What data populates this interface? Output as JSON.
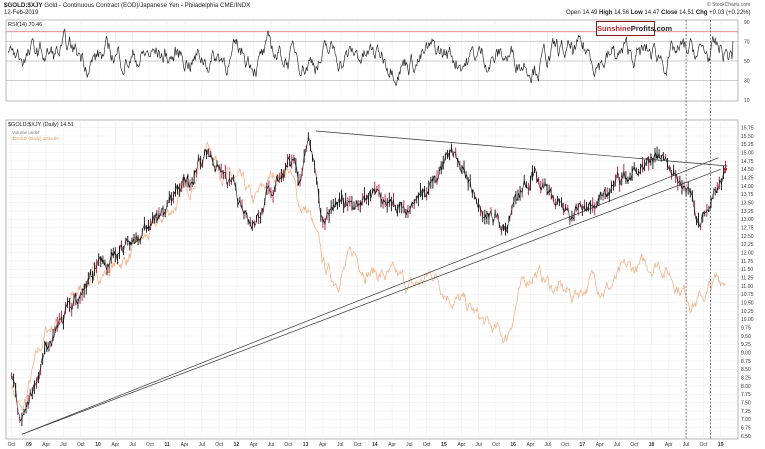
{
  "header": {
    "symbol": "$GOLD:$XJY",
    "description": "Gold - Continuous Contract (EOD)/Japanese Yen - Philadelphia",
    "exchange": "CME/INDX",
    "date": "12-Feb-2019",
    "open_label": "Open",
    "open": "14.49",
    "high_label": "High",
    "high": "14.56",
    "low_label": "Low",
    "low": "14.47",
    "close_label": "Close",
    "close": "14.51",
    "chg_label": "Chg",
    "chg": "+0.03 (+0.22%)",
    "copyright": "© StockCharts.com"
  },
  "logo": {
    "brand": "Sunshine",
    "suffix": "Profits.com"
  },
  "rsi_panel": {
    "legend": "RSI(14) 70.46",
    "levels": [
      "90",
      "70",
      "50",
      "30",
      "10"
    ]
  },
  "price_panel": {
    "legend_main": "$GOLD:$XJY (Daily) 14.51",
    "legend_style": "Volume undef",
    "legend_overlay": "$GOLD (Daily) 1311.50"
  },
  "colors": {
    "rsi_line": "#111111",
    "bars": "#111111",
    "bars_alt": "#b0193a",
    "overlay": "#f4b48c",
    "upper_rsi_band": "#d96a6a",
    "trendline": "#333333"
  },
  "chart_data": {
    "type": "line",
    "title": "$GOLD:$XJY",
    "x_ticks": [
      "Oct",
      "09",
      "Apr",
      "Jul",
      "Oct",
      "10",
      "Apr",
      "Jul",
      "Oct",
      "11",
      "Apr",
      "Jul",
      "Oct",
      "12",
      "Apr",
      "Jul",
      "Oct",
      "13",
      "Apr",
      "Jul",
      "Oct",
      "14",
      "Apr",
      "Jul",
      "Oct",
      "15",
      "Apr",
      "Jul",
      "Oct",
      "16",
      "Apr",
      "Jul",
      "Oct",
      "17",
      "Apr",
      "Jul",
      "Oct",
      "18",
      "Apr",
      "Jul",
      "Oct",
      "19"
    ],
    "y_ticks": [
      "15.75",
      "15.50",
      "15.25",
      "15.00",
      "14.75",
      "14.50",
      "14.25",
      "14.00",
      "13.75",
      "13.50",
      "13.25",
      "13.00",
      "12.75",
      "12.50",
      "12.25",
      "12.00",
      "11.75",
      "11.50",
      "11.25",
      "11.00",
      "10.75",
      "10.50",
      "10.25",
      "10.00",
      "9.75",
      "9.50",
      "9.25",
      "9.00",
      "8.75",
      "8.50",
      "8.25",
      "8.00",
      "7.75",
      "7.50",
      "7.25",
      "7.00",
      "6.75",
      "6.50"
    ],
    "ylim": [
      6.5,
      15.8
    ],
    "series": [
      {
        "name": "$GOLD:$XJY",
        "x": [
          2008.8,
          2008.95,
          2009.1,
          2009.3,
          2009.6,
          2009.9,
          2010.2,
          2010.5,
          2010.85,
          2011.1,
          2011.4,
          2011.65,
          2011.9,
          2012.1,
          2012.3,
          2012.55,
          2012.8,
          2012.95,
          2013.1,
          2013.3,
          2013.5,
          2013.75,
          2014.0,
          2014.3,
          2014.6,
          2014.9,
          2015.1,
          2015.4,
          2015.7,
          2015.95,
          2016.1,
          2016.35,
          2016.6,
          2016.9,
          2017.2,
          2017.45,
          2017.7,
          2018.0,
          2018.15,
          2018.4,
          2018.6,
          2018.75,
          2018.95,
          2019.12
        ],
        "y": [
          8.3,
          6.8,
          7.9,
          9.2,
          10.2,
          11.2,
          11.8,
          12.3,
          12.8,
          13.6,
          14.3,
          15.0,
          14.0,
          13.6,
          12.9,
          13.8,
          14.8,
          14.2,
          15.4,
          12.8,
          13.6,
          13.3,
          13.7,
          13.5,
          13.4,
          14.0,
          15.2,
          14.1,
          13.2,
          12.8,
          13.6,
          14.3,
          13.8,
          13.1,
          13.6,
          13.8,
          14.2,
          14.5,
          14.8,
          14.4,
          13.8,
          13.0,
          13.9,
          14.51
        ]
      },
      {
        "name": "$GOLD (Daily) 1311.50",
        "x": [
          2008.8,
          2008.95,
          2009.1,
          2009.3,
          2009.6,
          2009.9,
          2010.2,
          2010.5,
          2010.85,
          2011.1,
          2011.4,
          2011.65,
          2011.9,
          2012.1,
          2012.3,
          2012.55,
          2012.8,
          2012.95,
          2013.1,
          2013.3,
          2013.45,
          2013.75,
          2014.0,
          2014.3,
          2014.6,
          2014.9,
          2015.1,
          2015.4,
          2015.7,
          2015.95,
          2016.1,
          2016.35,
          2016.6,
          2016.9,
          2017.2,
          2017.45,
          2017.7,
          2018.0,
          2018.15,
          2018.4,
          2018.6,
          2018.75,
          2018.95,
          2019.12
        ],
        "y": [
          8.1,
          7.1,
          8.3,
          9.6,
          10.3,
          11.2,
          11.5,
          11.9,
          12.6,
          13.3,
          14.1,
          15.3,
          14.3,
          14.0,
          13.4,
          14.2,
          14.6,
          13.5,
          13.2,
          11.6,
          11.2,
          11.9,
          11.5,
          11.2,
          10.9,
          11.4,
          10.9,
          10.3,
          9.7,
          9.4,
          10.6,
          11.5,
          11.0,
          10.7,
          11.2,
          11.0,
          11.4,
          11.6,
          11.8,
          11.2,
          10.7,
          10.6,
          11.0,
          11.3
        ]
      }
    ],
    "rsi": {
      "name": "RSI(14)",
      "last": 70.46,
      "ylim": [
        10,
        90
      ],
      "levels": [
        30,
        50,
        70
      ]
    },
    "trendlines": [
      {
        "from": [
          2008.95,
          6.55
        ],
        "to": [
          2019.02,
          14.85
        ]
      },
      {
        "from": [
          2008.95,
          6.55
        ],
        "to": [
          2019.05,
          14.5
        ]
      },
      {
        "from": [
          2013.2,
          15.65
        ],
        "to": [
          2019.15,
          14.6
        ]
      }
    ],
    "vlines_x": [
      2018.55,
      2018.9
    ]
  }
}
